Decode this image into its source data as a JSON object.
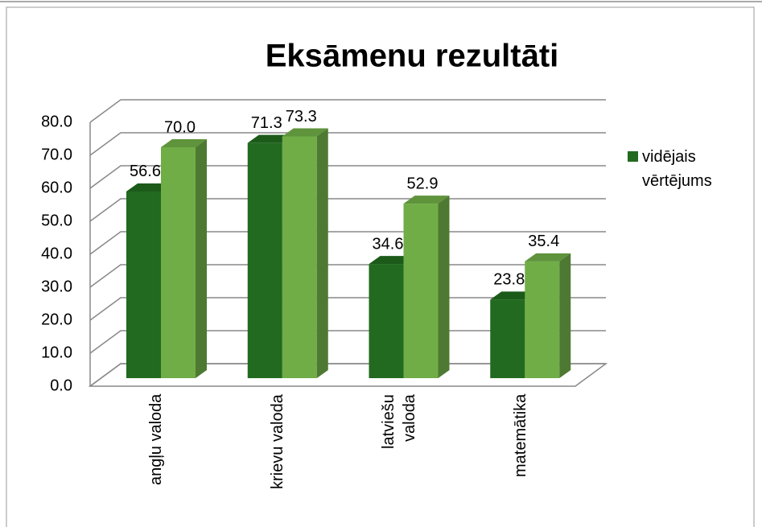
{
  "chart_data": {
    "type": "bar3d",
    "title": "Eksāmenu rezultāti",
    "categories": [
      "angļu valoda",
      "krievu valoda",
      "latviešu valoda",
      "matemātika"
    ],
    "series": [
      {
        "name": "vidējais vērtējums",
        "color": "#216a1f",
        "values": [
          56.6,
          71.3,
          34.6,
          23.8
        ],
        "value_labels": [
          "56.6",
          "71.3",
          "34.6",
          "23.8"
        ]
      },
      {
        "color": "#70ad47",
        "values": [
          70,
          73.3,
          52.9,
          35.4
        ],
        "value_labels": [
          "70.0",
          "73.3",
          "52.9",
          "35.4"
        ]
      }
    ],
    "ylim": [
      0,
      80
    ],
    "yticks": [
      {
        "value": 0,
        "label": "0.0"
      },
      {
        "value": 10,
        "label": "10.0"
      },
      {
        "value": 20,
        "label": "20.0"
      },
      {
        "value": 30,
        "label": "30.0"
      },
      {
        "value": 40,
        "label": "40.0"
      },
      {
        "value": 50,
        "label": "50.0"
      },
      {
        "value": 60,
        "label": "60.0"
      },
      {
        "value": 70,
        "label": "70.0"
      },
      {
        "value": 80,
        "label": "80.0"
      }
    ],
    "grid": true,
    "legend": "right"
  }
}
